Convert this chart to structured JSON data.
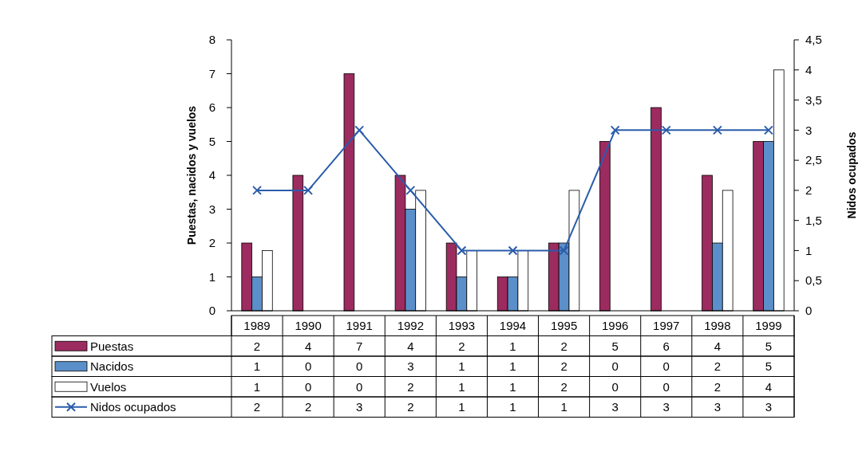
{
  "chart_data": {
    "type": "bar",
    "ylabel": "Puestas, nacidos y vuelos",
    "y2label": "Nidos ocupados",
    "categories": [
      "1989",
      "1990",
      "1991",
      "1992",
      "1993",
      "1994",
      "1995",
      "1996",
      "1997",
      "1998",
      "1999"
    ],
    "series": [
      {
        "name": "Puestas",
        "color": "#9c2b60",
        "values": [
          2,
          4,
          7,
          4,
          2,
          1,
          2,
          5,
          6,
          4,
          5
        ]
      },
      {
        "name": "Nacidos",
        "color": "#5b8fc9",
        "values": [
          1,
          0,
          0,
          3,
          1,
          1,
          2,
          0,
          0,
          2,
          5
        ]
      },
      {
        "name": "Vuelos",
        "color": "#ffffff",
        "axis": "y2",
        "values": [
          1,
          0,
          0,
          2,
          1,
          1,
          2,
          0,
          0,
          2,
          4
        ]
      },
      {
        "name": "Nidos ocupados",
        "type": "line",
        "color": "#2a5caa",
        "axis": "y2",
        "marker": "cross",
        "values": [
          2,
          2,
          3,
          2,
          1,
          1,
          1,
          3,
          3,
          3,
          3
        ]
      }
    ],
    "ylim": [
      0,
      8
    ],
    "yticks": [
      0,
      1,
      2,
      3,
      4,
      5,
      6,
      7,
      8
    ],
    "y2lim": [
      0,
      4.5
    ],
    "y2ticks": [
      0,
      {
        "value": 0.5,
        "label": "0,5"
      },
      1,
      {
        "value": 1.5,
        "label": "1,5"
      },
      2,
      {
        "value": 2.5,
        "label": "2,5"
      },
      3,
      {
        "value": 3.5,
        "label": "3,5"
      },
      4,
      {
        "value": 4.5,
        "label": "4,5"
      }
    ],
    "data_labels": true,
    "legend": "bottom",
    "grid": false
  }
}
